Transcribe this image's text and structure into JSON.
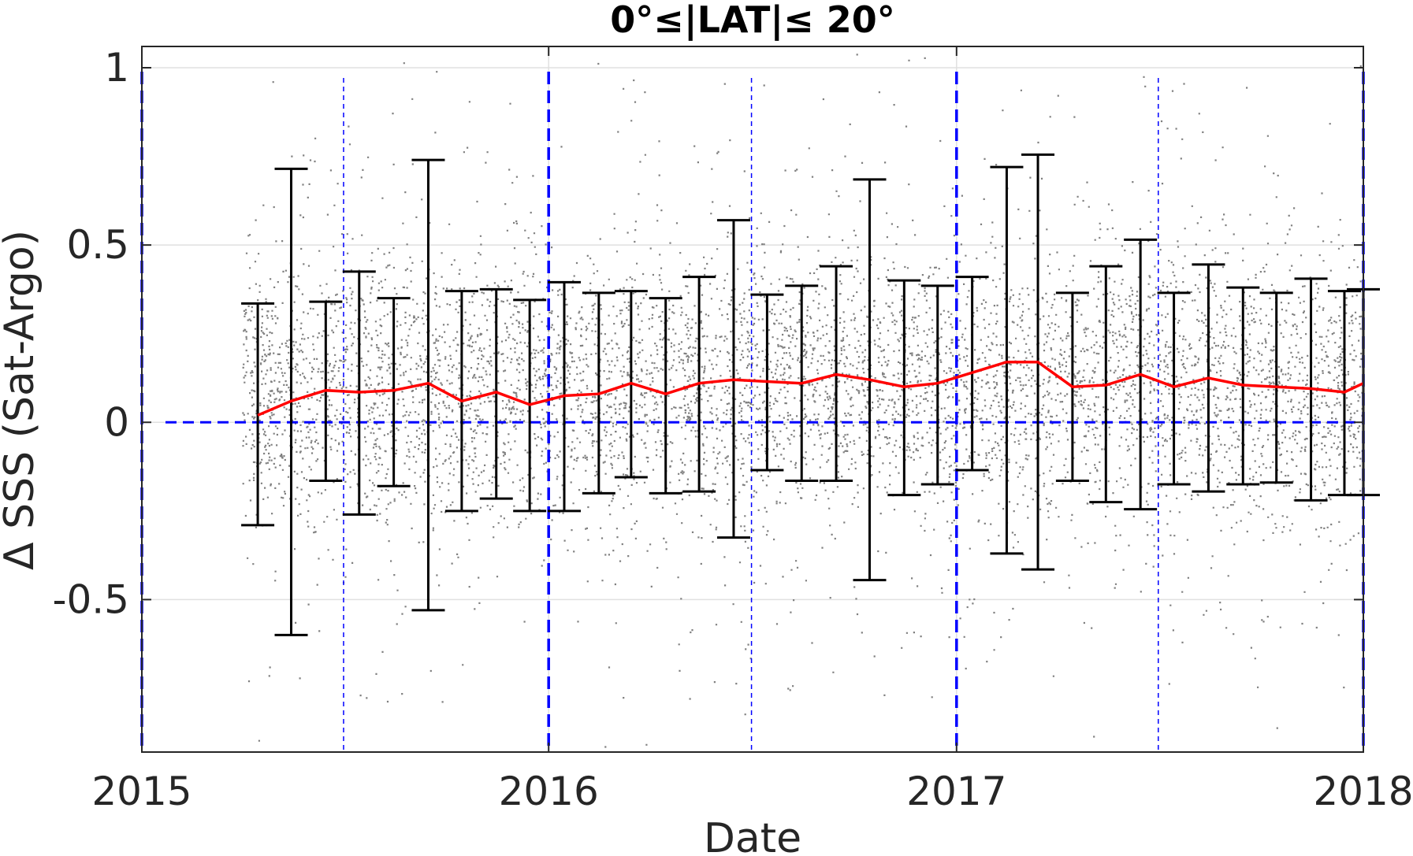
{
  "chart_data": {
    "type": "scatter",
    "title": "0°≤|LAT|≤ 20°",
    "xlabel": "Date",
    "ylabel": "Δ SSS (Sat-Argo)",
    "xlim": [
      "2015-01-01",
      "2018-01-01"
    ],
    "ylim": [
      -0.93,
      1.06
    ],
    "x_ticks": [
      "2015-01-01",
      "2016-01-01",
      "2017-01-01",
      "2018-01-01"
    ],
    "x_tick_labels": [
      "2015",
      "2016",
      "2017",
      "2018"
    ],
    "y_ticks": [
      -0.5,
      0,
      0.5,
      1
    ],
    "y_tick_labels": [
      "-0.5",
      "0",
      "0.5",
      "1"
    ],
    "grid": true,
    "colors": {
      "scatter": "#808080",
      "mean_line": "#ff0000",
      "errorbar": "#000000",
      "reference": "#0000ff",
      "grid": "#e0e0e0"
    },
    "scatter_summary": {
      "x_start": "2015-04-01",
      "x_end": "2018-01-01",
      "approx_center": 0.1,
      "approx_spread": 0.2
    },
    "series": [
      {
        "type": "errorbar",
        "x": [
          "2015-04-15",
          "2015-05-15",
          "2015-06-15",
          "2015-07-15",
          "2015-08-15",
          "2015-09-15",
          "2015-10-15",
          "2015-11-15",
          "2015-12-15",
          "2016-01-15",
          "2016-02-15",
          "2016-03-15",
          "2016-04-15",
          "2016-05-15",
          "2016-06-15",
          "2016-07-15",
          "2016-08-15",
          "2016-09-15",
          "2016-10-15",
          "2016-11-15",
          "2016-12-15",
          "2017-01-15",
          "2017-02-15",
          "2017-03-15",
          "2017-04-15",
          "2017-05-15",
          "2017-06-15",
          "2017-07-15",
          "2017-08-15",
          "2017-09-15",
          "2017-10-15",
          "2017-11-15",
          "2017-12-15",
          "2018-01-01"
        ],
        "mean": [
          0.02,
          0.06,
          0.09,
          0.085,
          0.09,
          0.11,
          0.06,
          0.085,
          0.05,
          0.075,
          0.08,
          0.11,
          0.08,
          0.11,
          0.12,
          0.115,
          0.11,
          0.135,
          0.12,
          0.1,
          0.11,
          0.14,
          0.17,
          0.17,
          0.1,
          0.105,
          0.135,
          0.1,
          0.125,
          0.105,
          0.1,
          0.095,
          0.085,
          0.11
        ],
        "upper": [
          0.335,
          0.715,
          0.34,
          0.425,
          0.35,
          0.74,
          0.37,
          0.375,
          0.345,
          0.395,
          0.365,
          0.37,
          0.35,
          0.41,
          0.57,
          0.36,
          0.385,
          0.44,
          0.685,
          0.4,
          0.385,
          0.41,
          0.72,
          0.755,
          0.365,
          0.44,
          0.515,
          0.365,
          0.445,
          0.38,
          0.365,
          0.405,
          0.37,
          0.375
        ],
        "lower": [
          -0.29,
          -0.6,
          -0.165,
          -0.26,
          -0.18,
          -0.53,
          -0.25,
          -0.215,
          -0.25,
          -0.25,
          -0.2,
          -0.155,
          -0.2,
          -0.195,
          -0.325,
          -0.135,
          -0.165,
          -0.165,
          -0.445,
          -0.205,
          -0.175,
          -0.135,
          -0.37,
          -0.415,
          -0.165,
          -0.225,
          -0.245,
          -0.175,
          -0.195,
          -0.175,
          -0.17,
          -0.22,
          -0.205,
          -0.205
        ]
      }
    ],
    "reference_lines": {
      "horizontal_y": 0,
      "thick_vertical_x": [
        "2015-01-01",
        "2016-01-01",
        "2017-01-01",
        "2018-01-01"
      ],
      "thin_vertical_x": [
        "2015-07-01",
        "2016-07-01",
        "2017-07-01"
      ]
    }
  }
}
